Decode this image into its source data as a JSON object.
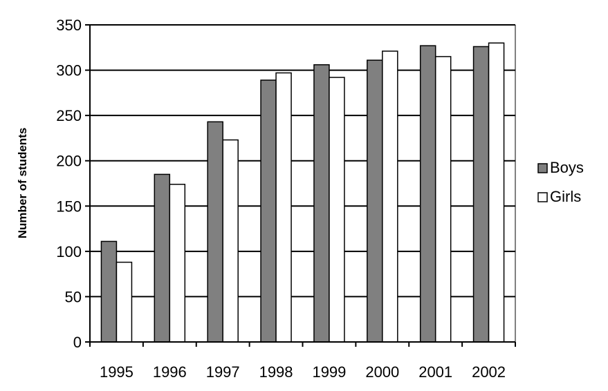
{
  "chart_data": {
    "type": "bar",
    "title": "",
    "xlabel": "",
    "ylabel": "Number of students",
    "categories": [
      "1995",
      "1996",
      "1997",
      "1998",
      "1999",
      "2000",
      "2001",
      "2002"
    ],
    "series": [
      {
        "name": "Boys",
        "values": [
          111,
          185,
          243,
          289,
          306,
          311,
          327,
          326
        ],
        "color": "#808080"
      },
      {
        "name": "Girls",
        "values": [
          88,
          174,
          223,
          297,
          292,
          321,
          315,
          330
        ],
        "color": "#ffffff"
      }
    ],
    "ylim": [
      0,
      350
    ],
    "yticks": [
      "0",
      "50",
      "100",
      "150",
      "200",
      "250",
      "300",
      "350"
    ],
    "grid": true,
    "legend_position": "right"
  }
}
